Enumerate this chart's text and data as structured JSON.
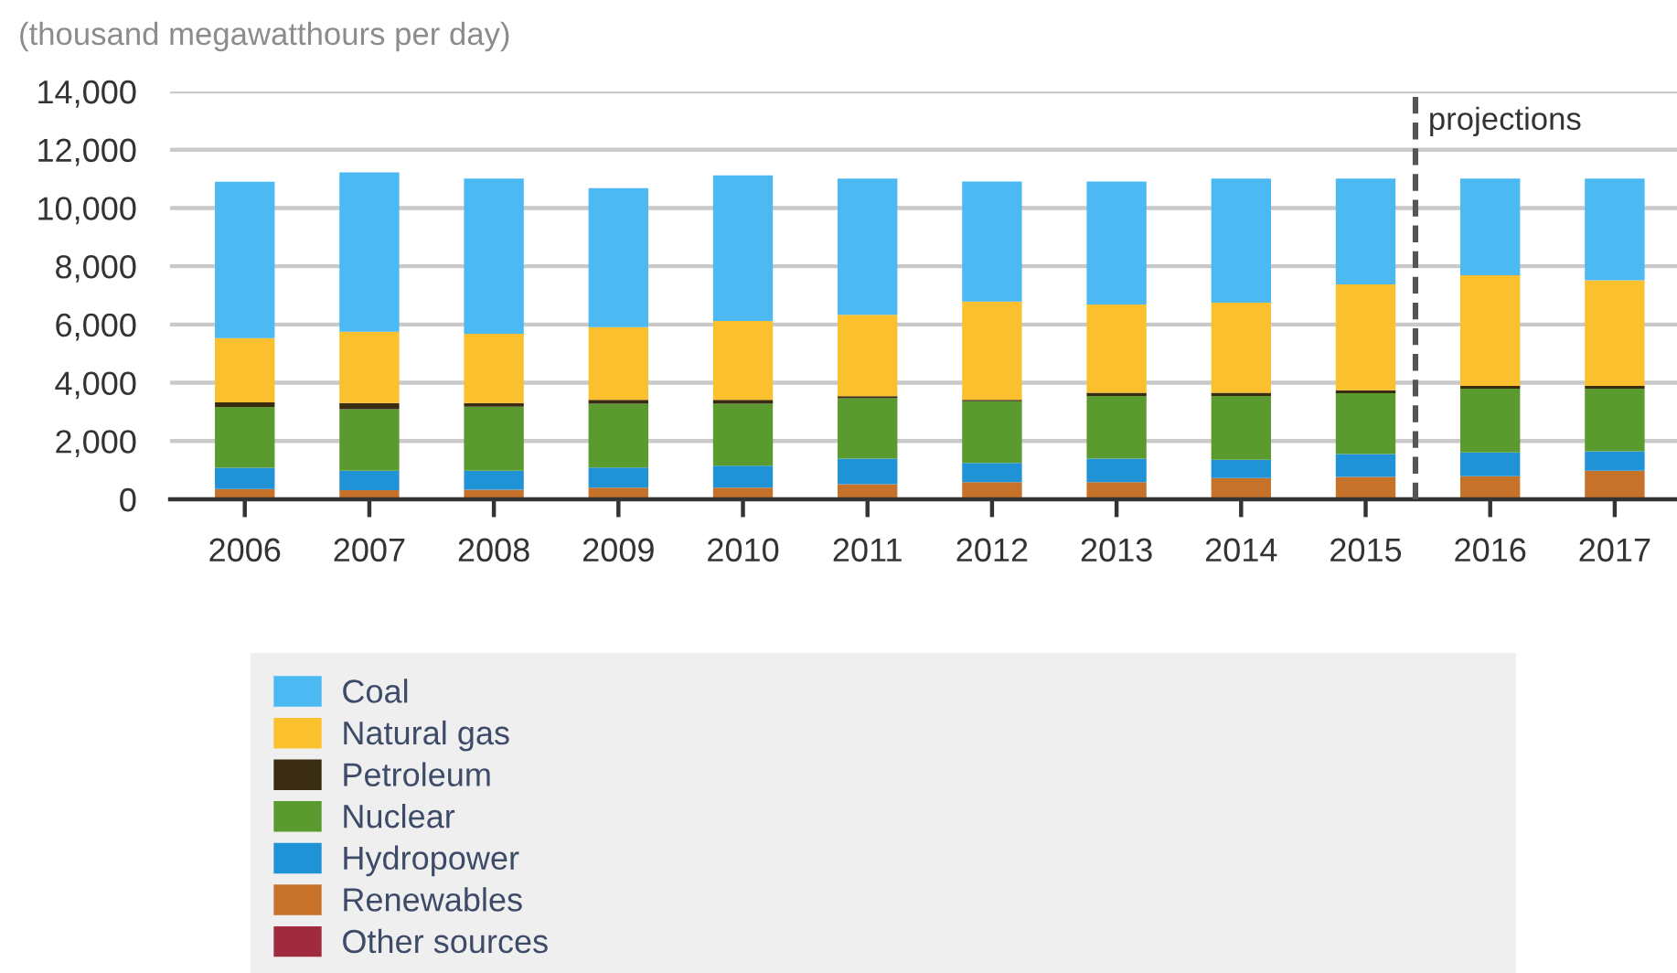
{
  "chart_data": {
    "type": "bar",
    "stacked": true,
    "ylabel": "(thousand megawatthours per day)",
    "x": [
      2006,
      2007,
      2008,
      2009,
      2010,
      2011,
      2012,
      2013,
      2014,
      2015,
      2016,
      2017
    ],
    "xlim": [
      2005.4,
      2017.5
    ],
    "xticks": [
      2006,
      2007,
      2008,
      2009,
      2010,
      2011,
      2012,
      2013,
      2014,
      2015,
      2016,
      2017
    ],
    "ylim": [
      0,
      14000
    ],
    "yticks": [
      0,
      {
        "value": 2000,
        "label": "2,000"
      },
      {
        "value": 4000,
        "label": "4,000"
      },
      {
        "value": 6000,
        "label": "6,000"
      },
      {
        "value": 8000,
        "label": "8,000"
      },
      {
        "value": 10000,
        "label": "10,000"
      },
      {
        "value": 12000,
        "label": "12,000"
      },
      {
        "value": 14000,
        "label": "14,000"
      }
    ],
    "grid": "y",
    "legend": "bottom",
    "ref_lines": [
      {
        "axis": "x",
        "value": 2015.4,
        "label": "projections",
        "color": "#555555",
        "line_style": "dashed"
      }
    ],
    "series": [
      {
        "name": "Other sources",
        "color": "#a02a3e",
        "values": [
          30,
          30,
          30,
          30,
          30,
          30,
          30,
          30,
          30,
          30,
          30,
          30
        ]
      },
      {
        "name": "Renewables",
        "color": "#c7722b",
        "values": [
          320,
          280,
          300,
          370,
          370,
          490,
          560,
          560,
          700,
          740,
          760,
          950
        ]
      },
      {
        "name": "Hydropower",
        "color": "#1f93d6",
        "values": [
          730,
          670,
          650,
          690,
          750,
          880,
          660,
          810,
          630,
          780,
          820,
          670
        ]
      },
      {
        "name": "Nuclear",
        "color": "#5b9a2f",
        "values": [
          2090,
          2110,
          2200,
          2190,
          2130,
          2070,
          2120,
          2150,
          2190,
          2090,
          2190,
          2150
        ]
      },
      {
        "name": "Petroleum",
        "color": "#3a2c10",
        "values": [
          160,
          210,
          120,
          130,
          130,
          70,
          40,
          110,
          110,
          100,
          90,
          90
        ]
      },
      {
        "name": "Natural gas",
        "color": "#fbc02d",
        "values": [
          2200,
          2450,
          2380,
          2500,
          2710,
          2790,
          3380,
          3030,
          3090,
          3640,
          3800,
          3630
        ]
      },
      {
        "name": "Coal",
        "color": "#4cb9f2",
        "values": [
          5370,
          5470,
          5330,
          4770,
          5000,
          4680,
          4120,
          4220,
          4260,
          3630,
          3320,
          3490
        ]
      }
    ]
  }
}
